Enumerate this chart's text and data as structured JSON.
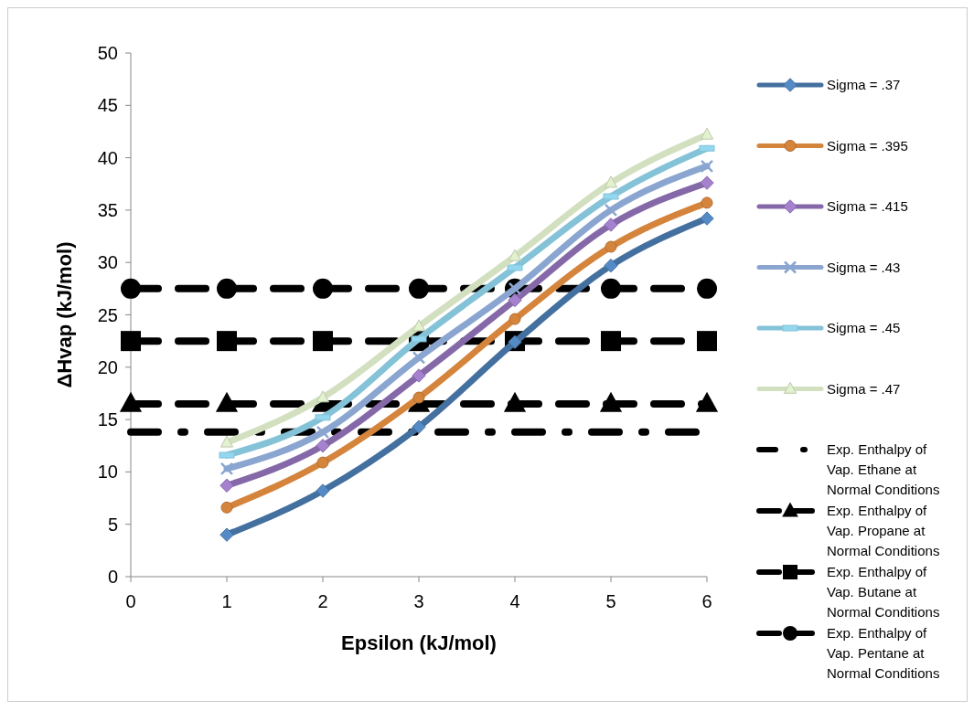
{
  "chart_data": {
    "type": "line",
    "xlabel": "Epsilon (kJ/mol)",
    "ylabel": "ΔHvap (kJ/mol)",
    "xlim": [
      0,
      6
    ],
    "xticks": [
      0,
      1,
      2,
      3,
      4,
      5,
      6
    ],
    "ylim": [
      0,
      50
    ],
    "yticks": [
      0,
      5,
      10,
      15,
      20,
      25,
      30,
      35,
      40,
      45,
      50
    ],
    "grid": false,
    "legend": "right",
    "line_style": "solid",
    "x": [
      1,
      2,
      3,
      4,
      5,
      6
    ],
    "series": [
      {
        "name": "Sigma = .37",
        "color": "#4470a0",
        "marker": "diamond",
        "values": [
          4.0,
          8.2,
          14.3,
          22.4,
          29.7,
          34.2
        ]
      },
      {
        "name": "Sigma = .395",
        "color": "#d5843c",
        "marker": "circle",
        "values": [
          6.6,
          10.9,
          17.1,
          24.6,
          31.5,
          35.7
        ]
      },
      {
        "name": "Sigma = .415",
        "color": "#8568a8",
        "marker": "diamond",
        "values": [
          8.7,
          12.5,
          19.2,
          26.4,
          33.6,
          37.6
        ]
      },
      {
        "name": "Sigma = .43",
        "color": "#8aa6d0",
        "marker": "cross",
        "values": [
          10.3,
          13.8,
          20.9,
          27.5,
          35.0,
          39.2
        ]
      },
      {
        "name": "Sigma = .45",
        "color": "#84c2d8",
        "marker": "square",
        "values": [
          11.6,
          15.2,
          22.7,
          29.5,
          36.3,
          40.9
        ]
      },
      {
        "name": "Sigma = .47",
        "color": "#d2e0c0",
        "marker": "triangle",
        "values": [
          12.8,
          17.1,
          23.9,
          30.6,
          37.6,
          42.2
        ]
      },
      {
        "name": "Exp. Enthalpy of Vap. Ethane at Normal Conditions",
        "color": "#000000",
        "marker": "none",
        "line_style": "dotted",
        "x": [
          0,
          1,
          2,
          3,
          4,
          5,
          6
        ],
        "values": [
          13.8,
          13.8,
          13.8,
          13.8,
          13.8,
          13.8,
          13.8
        ]
      },
      {
        "name": "Exp. Enthalpy of Vap. Propane at Normal Conditions",
        "color": "#000000",
        "marker": "triangle",
        "line_style": "dashed",
        "x": [
          0,
          1,
          2,
          3,
          4,
          5,
          6
        ],
        "values": [
          16.5,
          16.5,
          16.5,
          16.5,
          16.5,
          16.5,
          16.5
        ]
      },
      {
        "name": "Exp. Enthalpy of Vap. Butane at Normal Conditions",
        "color": "#000000",
        "marker": "square",
        "line_style": "dashed",
        "x": [
          0,
          1,
          2,
          3,
          4,
          5,
          6
        ],
        "values": [
          22.5,
          22.5,
          22.5,
          22.5,
          22.5,
          22.5,
          22.5
        ]
      },
      {
        "name": "Exp. Enthalpy of Vap. Pentane at Normal Conditions",
        "color": "#000000",
        "marker": "circle",
        "line_style": "dashed",
        "x": [
          0,
          1,
          2,
          3,
          4,
          5,
          6
        ],
        "values": [
          27.5,
          27.5,
          27.5,
          27.5,
          27.5,
          27.5,
          27.5
        ]
      }
    ]
  }
}
